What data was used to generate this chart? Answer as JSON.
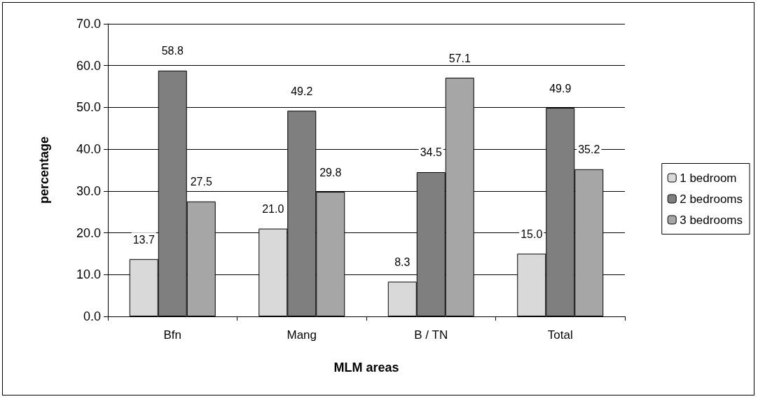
{
  "chart_data": {
    "type": "bar",
    "xlabel": "MLM areas",
    "ylabel": "percentage",
    "categories": [
      "Bfn",
      "Mang",
      "B / TN",
      "Total"
    ],
    "series": [
      {
        "name": "1 bedroom",
        "color": "#d9d9d9",
        "values": [
          13.7,
          21.0,
          8.3,
          15.0
        ],
        "value_labels": [
          "13.7",
          "21.0",
          "8.3",
          "15.0"
        ]
      },
      {
        "name": "2 bedrooms",
        "color": "#7f7f7f",
        "values": [
          58.8,
          49.2,
          34.5,
          49.9
        ],
        "value_labels": [
          "58.8",
          "49.2",
          "34.5",
          "49.9"
        ]
      },
      {
        "name": "3 bedrooms",
        "color": "#a6a6a6",
        "values": [
          27.5,
          29.8,
          57.1,
          35.2
        ],
        "value_labels": [
          "27.5",
          "29.8",
          "57.1",
          "35.2"
        ]
      }
    ],
    "ylim": [
      0,
      70
    ],
    "yticks": [
      {
        "value": 0,
        "label": "0.0"
      },
      {
        "value": 10,
        "label": "10.0"
      },
      {
        "value": 20,
        "label": "20.0"
      },
      {
        "value": 30,
        "label": "30.0"
      },
      {
        "value": 40,
        "label": "40.0"
      },
      {
        "value": 50,
        "label": "50.0"
      },
      {
        "value": 60,
        "label": "60.0"
      },
      {
        "value": 70,
        "label": "70.0"
      }
    ],
    "grid": "y",
    "legend": "right"
  }
}
